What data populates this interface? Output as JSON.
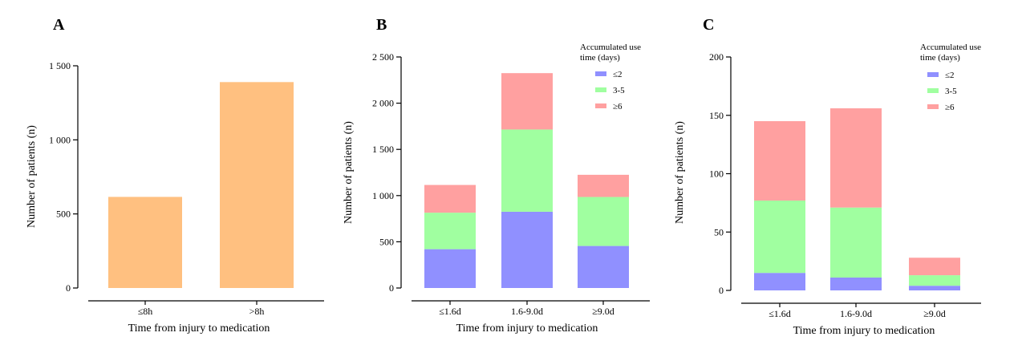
{
  "chart_data": [
    {
      "type": "bar",
      "panel": "A",
      "categories": [
        "≤8h",
        ">8h"
      ],
      "values": [
        615,
        1390
      ],
      "xlabel": "Time from injury to medication",
      "ylabel": "Number of patients (n)",
      "ylim": [
        0,
        1500
      ],
      "yticks": [
        0,
        500,
        1000,
        1500
      ],
      "ytick_labels": [
        "0",
        "500",
        "1 000",
        "1 500"
      ],
      "color": "#FFC080",
      "grid": false
    },
    {
      "type": "bar",
      "stacked": true,
      "panel": "B",
      "categories": [
        "≤1.6d",
        "1.6-9.0d",
        "≥9.0d"
      ],
      "series": [
        {
          "name": "≤2",
          "values": [
            420,
            825,
            455
          ],
          "color": "#9090FF"
        },
        {
          "name": "3-5",
          "values": [
            395,
            890,
            530
          ],
          "color": "#A0FFA0"
        },
        {
          "name": "≥6",
          "values": [
            300,
            610,
            240
          ],
          "color": "#FFA0A0"
        }
      ],
      "xlabel": "Time from injury to medication",
      "ylabel": "Number of patients (n)",
      "ylim": [
        0,
        2500
      ],
      "yticks": [
        0,
        500,
        1000,
        1500,
        2000,
        2500
      ],
      "ytick_labels": [
        "0",
        "500",
        "1 000",
        "1 500",
        "2 000",
        "2 500"
      ],
      "legend_title": [
        "Accumulated use",
        "time (days)"
      ],
      "legend_position": "top-right",
      "grid": false
    },
    {
      "type": "bar",
      "stacked": true,
      "panel": "C",
      "categories": [
        "≤1.6d",
        "1.6-9.0d",
        "≥9.0d"
      ],
      "series": [
        {
          "name": "≤2",
          "values": [
            15,
            11,
            4
          ],
          "color": "#9090FF"
        },
        {
          "name": "3-5",
          "values": [
            62,
            60,
            9
          ],
          "color": "#A0FFA0"
        },
        {
          "name": "≥6",
          "values": [
            68,
            85,
            15
          ],
          "color": "#FFA0A0"
        }
      ],
      "xlabel": "Time from injury to medication",
      "ylabel": "Number of patients (n)",
      "ylim": [
        0,
        200
      ],
      "yticks": [
        0,
        50,
        100,
        150,
        200
      ],
      "ytick_labels": [
        "0",
        "50",
        "100",
        "150",
        "200"
      ],
      "legend_title": [
        "Accumulated use",
        "time (days)"
      ],
      "legend_position": "top-right",
      "grid": false
    }
  ]
}
